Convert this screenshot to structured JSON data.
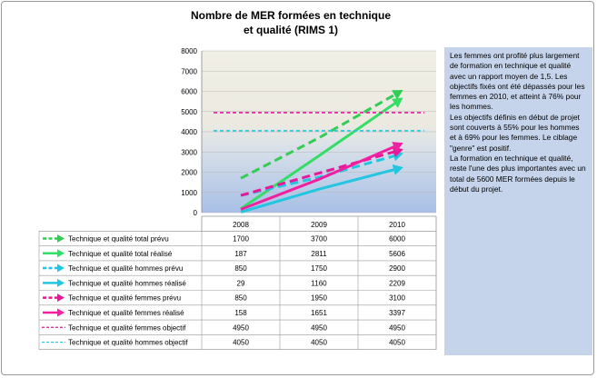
{
  "chart_data": {
    "type": "line",
    "title": "Nombre de MER formées en technique et qualité (RIMS 1)",
    "title_lines": [
      "Nombre de MER formées en technique",
      "et qualité (RIMS 1)"
    ],
    "categories": [
      "2008",
      "2009",
      "2010"
    ],
    "ylim": [
      0,
      8000
    ],
    "yticks": [
      0,
      1000,
      2000,
      3000,
      4000,
      5000,
      6000,
      7000,
      8000
    ],
    "grid": true,
    "legend": "data-table-below",
    "series": [
      {
        "name": "Technique et qualité total prévu",
        "values": [
          1700,
          3700,
          6000
        ],
        "color": "#33cc55",
        "dashed": true,
        "arrow": true
      },
      {
        "name": "Technique et qualité total réalisé",
        "values": [
          187,
          2811,
          5606
        ],
        "color": "#33dd66",
        "dashed": false,
        "arrow": true
      },
      {
        "name": "Technique et qualité hommes prévu",
        "values": [
          850,
          1750,
          2900
        ],
        "color": "#22c6e0",
        "dashed": true,
        "arrow": true
      },
      {
        "name": "Technique et qualité hommes réalisé",
        "values": [
          29,
          1160,
          2209
        ],
        "color": "#22c6e0",
        "dashed": false,
        "arrow": true
      },
      {
        "name": "Technique et qualité femmes prévu",
        "values": [
          850,
          1950,
          3100
        ],
        "color": "#e8189a",
        "dashed": true,
        "arrow": true
      },
      {
        "name": "Technique et qualité femmes réalisé",
        "values": [
          158,
          1651,
          3397
        ],
        "color": "#f020a0",
        "dashed": false,
        "arrow": true
      },
      {
        "name": "Technique et qualité femmes objectif",
        "values": [
          4950,
          4950,
          4950
        ],
        "color": "#e8189a",
        "dashed": true,
        "arrow": false
      },
      {
        "name": "Technique et qualité hommes objectif",
        "values": [
          4050,
          4050,
          4050
        ],
        "color": "#22c6e0",
        "dashed": true,
        "arrow": false
      }
    ]
  },
  "note": {
    "paragraphs": [
      "Les femmes ont profité plus largement de formation en technique et qualité avec un rapport moyen de 1,5. Les objectifs fixés ont été dépassés pour les femmes en 2010, et atteint à 76% pour les hommes.",
      "Les objectifs définis en début de projet sont couverts à 55% pour les hommes et à 69% pour les femmes. Le ciblage \"genre\" est positif.",
      "La formation en technique et qualité, reste l'une des plus importantes avec un total de 5600 MER formées depuis le début du projet."
    ]
  },
  "colors": {
    "plot_top": "#f0efe6",
    "plot_bottom": "#a8bfe6",
    "panel": "#c5d4ea"
  }
}
